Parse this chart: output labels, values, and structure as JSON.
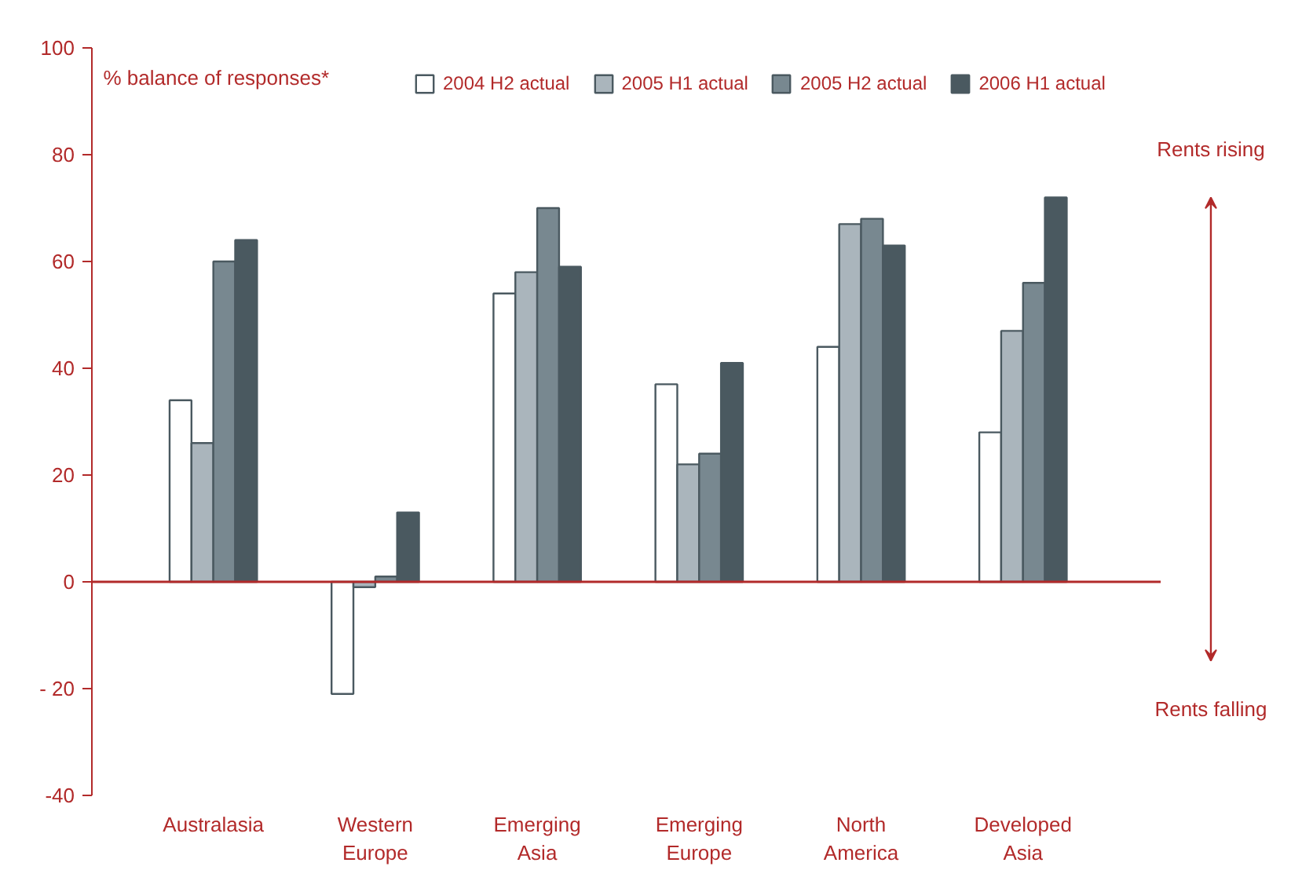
{
  "chart_data": {
    "type": "bar",
    "ylabel": "% balance of responses*",
    "categories": [
      "Australasia",
      "Western\nEurope",
      "Emerging\nAsia",
      "Emerging\nEurope",
      "North\nAmerica",
      "Developed\nAsia"
    ],
    "series": [
      {
        "name": "2004 H2 actual",
        "color": "#ffffff",
        "values": [
          34,
          -21,
          54,
          37,
          44,
          28
        ]
      },
      {
        "name": "2005 H1 actual",
        "color": "#aab5bc",
        "values": [
          26,
          -1,
          58,
          22,
          67,
          47
        ]
      },
      {
        "name": "2005 H2 actual",
        "color": "#788890",
        "values": [
          60,
          1,
          70,
          24,
          68,
          56
        ]
      },
      {
        "name": "2006 H1 actual",
        "color": "#4a5960",
        "values": [
          64,
          13,
          59,
          41,
          63,
          72
        ]
      }
    ],
    "ylim": [
      -40,
      100
    ],
    "yticks": [
      100,
      80,
      60,
      40,
      20,
      0,
      {
        "value": -20,
        "label": "- 20"
      },
      -40
    ],
    "ref_lines": [
      {
        "axis": "y",
        "value": 0,
        "color": "#b22a2a"
      }
    ],
    "annotations": [
      "Rents rising",
      "Rents falling"
    ],
    "grid": false,
    "legend": "top"
  }
}
